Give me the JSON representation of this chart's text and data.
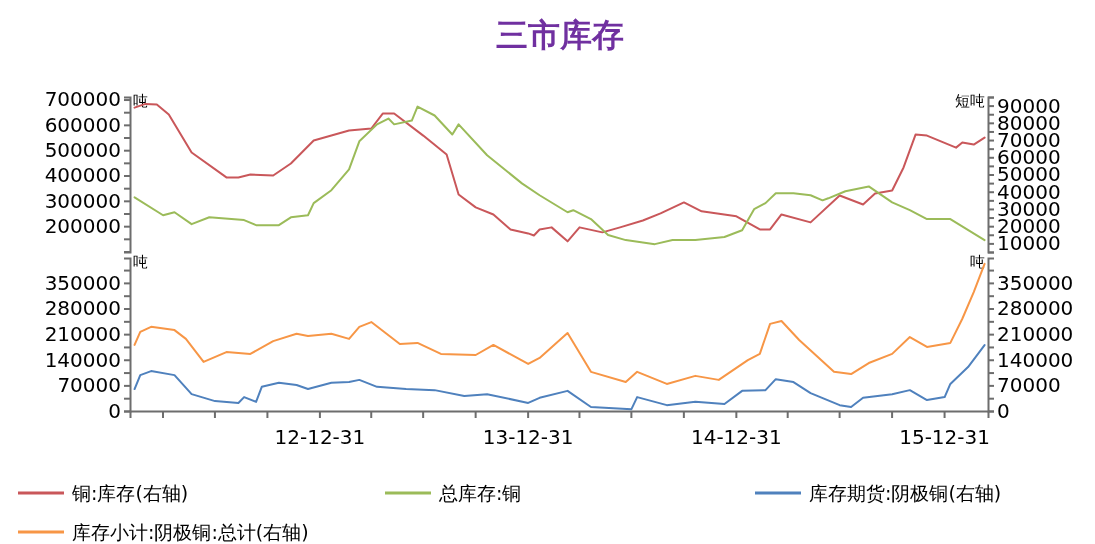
{
  "chart_data": [
    {
      "type": "line",
      "title": "三市库存",
      "ylabel": "吨",
      "y2label": "短吨",
      "legend": "bottom",
      "tick_labels": "y",
      "xlim": [
        "2012-02-03",
        "2016-03-17"
      ],
      "ylim": [
        98000,
        710000
      ],
      "yticks": [
        {
          "value": 100000,
          "label": null
        },
        {
          "value": 150000,
          "label": null
        },
        200000,
        {
          "value": 250000,
          "label": null
        },
        300000,
        {
          "value": 350000,
          "label": null
        },
        400000,
        {
          "value": 450000,
          "label": null
        },
        500000,
        {
          "value": 550000,
          "label": null
        },
        600000,
        {
          "value": 650000,
          "label": null
        },
        700000
      ],
      "y2lim": [
        5000,
        95000
      ],
      "y2ticks": [
        {
          "value": 5000,
          "label": null
        },
        10000,
        {
          "value": 15000,
          "label": null
        },
        20000,
        {
          "value": 25000,
          "label": null
        },
        30000,
        {
          "value": 35000,
          "label": null
        },
        40000,
        {
          "value": 45000,
          "label": null
        },
        50000,
        {
          "value": 55000,
          "label": null
        },
        60000,
        {
          "value": 65000,
          "label": null
        },
        70000,
        {
          "value": 75000,
          "label": null
        },
        80000,
        {
          "value": 85000,
          "label": null
        },
        90000,
        {
          "value": 95000,
          "label": null
        }
      ],
      "series": [
        {
          "name": "铜:库存(右轴)",
          "color": "#c9575a",
          "axis": "y2",
          "x": [
            "2012-02-11",
            "2012-03-01",
            "2012-03-21",
            "2012-04-11",
            "2012-05-21",
            "2012-07-21",
            "2012-08-11",
            "2012-09-01",
            "2012-10-11",
            "2012-11-11",
            "2012-12-21",
            "2013-01-21",
            "2013-02-21",
            "2013-04-01",
            "2013-04-21",
            "2013-05-11",
            "2013-07-01",
            "2013-08-11",
            "2013-09-01",
            "2013-10-01",
            "2013-11-01",
            "2013-12-01",
            "2014-01-01",
            "2014-01-11",
            "2014-01-21",
            "2014-02-11",
            "2014-03-11",
            "2014-04-01",
            "2014-05-11",
            "2014-06-11",
            "2014-07-21",
            "2014-08-21",
            "2014-10-01",
            "2014-11-01",
            "2015-01-01",
            "2015-02-11",
            "2015-03-01",
            "2015-03-21",
            "2015-05-11",
            "2015-07-01",
            "2015-08-11",
            "2015-09-01",
            "2015-10-01",
            "2015-10-21",
            "2015-11-11",
            "2015-12-01",
            "2016-01-21",
            "2016-02-01",
            "2016-02-21",
            "2016-03-11"
          ],
          "values": [
            88800,
            91000,
            90600,
            84800,
            62800,
            48300,
            48300,
            50000,
            49400,
            56400,
            69700,
            72600,
            75500,
            76700,
            85400,
            85400,
            72600,
            61600,
            38400,
            30900,
            26800,
            18100,
            15800,
            14600,
            18100,
            19300,
            11200,
            19300,
            16400,
            19300,
            23300,
            27400,
            33800,
            28600,
            25700,
            18100,
            18100,
            26800,
            22200,
            37800,
            32600,
            39000,
            40700,
            54100,
            73200,
            72600,
            65600,
            68600,
            67400,
            71400
          ]
        },
        {
          "name": "总库存:铜",
          "color": "#9bbb59",
          "x": [
            "2012-02-11",
            "2012-04-01",
            "2012-04-21",
            "2012-05-21",
            "2012-06-21",
            "2012-08-21",
            "2012-09-11",
            "2012-10-21",
            "2012-11-11",
            "2012-12-11",
            "2012-12-21",
            "2013-01-21",
            "2013-02-21",
            "2013-03-11",
            "2013-04-11",
            "2013-05-01",
            "2013-05-11",
            "2013-06-11",
            "2013-06-21",
            "2013-07-21",
            "2013-08-21",
            "2013-09-01",
            "2013-10-21",
            "2013-12-21",
            "2014-01-21",
            "2014-03-11",
            "2014-03-21",
            "2014-04-21",
            "2014-05-21",
            "2014-06-21",
            "2014-08-11",
            "2014-09-11",
            "2014-10-21",
            "2014-12-11",
            "2015-01-11",
            "2015-02-01",
            "2015-02-21",
            "2015-03-11",
            "2015-04-11",
            "2015-05-11",
            "2015-06-01",
            "2015-06-11",
            "2015-07-11",
            "2015-08-21",
            "2015-10-01",
            "2015-11-01",
            "2015-12-01",
            "2016-01-11",
            "2016-03-11"
          ],
          "values": [
            314000,
            243000,
            255000,
            208000,
            235000,
            224000,
            204000,
            204000,
            235000,
            243000,
            291000,
            342000,
            424000,
            535000,
            602000,
            625000,
            602000,
            617000,
            672000,
            637000,
            562000,
            602000,
            480000,
            369000,
            322000,
            255000,
            263000,
            228000,
            165000,
            145000,
            129000,
            145000,
            145000,
            157000,
            184000,
            267000,
            291000,
            330000,
            330000,
            322000,
            302000,
            310000,
            338000,
            357000,
            294000,
            263000,
            228000,
            228000,
            145000
          ]
        }
      ]
    },
    {
      "type": "line",
      "ylabel": "吨",
      "y2label": "吨",
      "legend": "bottom",
      "xlim": [
        "2012-02-03",
        "2016-03-17"
      ],
      "xticks": [
        {
          "value": "2012-03-31",
          "label": null
        },
        {
          "value": "2012-06-30",
          "label": null
        },
        {
          "value": "2012-09-30",
          "label": null
        },
        {
          "value": "2012-12-31",
          "label": "12-12-31"
        },
        {
          "value": "2013-03-31",
          "label": null
        },
        {
          "value": "2013-06-30",
          "label": null
        },
        {
          "value": "2013-09-30",
          "label": null
        },
        {
          "value": "2013-12-31",
          "label": "13-12-31"
        },
        {
          "value": "2014-03-31",
          "label": null
        },
        {
          "value": "2014-06-30",
          "label": null
        },
        {
          "value": "2014-09-30",
          "label": null
        },
        {
          "value": "2014-12-31",
          "label": "14-12-31"
        },
        {
          "value": "2015-03-31",
          "label": null
        },
        {
          "value": "2015-06-30",
          "label": null
        },
        {
          "value": "2015-09-30",
          "label": null
        },
        {
          "value": "2015-12-31",
          "label": "15-12-31"
        }
      ],
      "ylim": [
        0,
        418000
      ],
      "yticks": [
        0,
        {
          "value": 35000,
          "label": null
        },
        70000,
        {
          "value": 105000,
          "label": null
        },
        140000,
        {
          "value": 175000,
          "label": null
        },
        210000,
        {
          "value": 245000,
          "label": null
        },
        280000,
        {
          "value": 315000,
          "label": null
        },
        350000,
        {
          "value": 385000,
          "label": null
        }
      ],
      "y2lim": [
        0,
        418000
      ],
      "y2ticks": [
        0,
        {
          "value": 35000,
          "label": null
        },
        70000,
        {
          "value": 105000,
          "label": null
        },
        140000,
        {
          "value": 175000,
          "label": null
        },
        210000,
        {
          "value": 245000,
          "label": null
        },
        280000,
        {
          "value": 315000,
          "label": null
        },
        350000,
        {
          "value": 385000,
          "label": null
        }
      ],
      "series": [
        {
          "name": "库存期货:阴极铜(右轴)",
          "color": "#4f81bd",
          "axis": "y2",
          "x": [
            "2012-02-11",
            "2012-02-21",
            "2012-03-11",
            "2012-04-21",
            "2012-05-21",
            "2012-07-01",
            "2012-08-11",
            "2012-08-21",
            "2012-09-11",
            "2012-09-21",
            "2012-10-21",
            "2012-11-21",
            "2012-12-11",
            "2013-01-21",
            "2013-02-21",
            "2013-03-11",
            "2013-04-11",
            "2013-06-01",
            "2013-07-21",
            "2013-09-11",
            "2013-10-21",
            "2014-01-01",
            "2014-01-21",
            "2014-03-11",
            "2014-04-21",
            "2014-07-01",
            "2014-07-11",
            "2014-09-01",
            "2014-10-21",
            "2014-12-11",
            "2015-01-11",
            "2015-02-21",
            "2015-03-11",
            "2015-04-11",
            "2015-05-11",
            "2015-07-01",
            "2015-07-21",
            "2015-08-11",
            "2015-10-01",
            "2015-11-01",
            "2015-12-01",
            "2016-01-01",
            "2016-01-11",
            "2016-02-11",
            "2016-03-11"
          ],
          "values": [
            60000,
            98000,
            109000,
            98000,
            46000,
            27000,
            22000,
            38000,
            25000,
            66000,
            77000,
            71000,
            60000,
            77000,
            79000,
            85000,
            66000,
            60000,
            57000,
            41000,
            46000,
            22000,
            36000,
            55000,
            11000,
            5000,
            38000,
            16000,
            25000,
            19000,
            55000,
            57000,
            87000,
            79000,
            49000,
            16000,
            11000,
            36000,
            46000,
            57000,
            30000,
            38000,
            74000,
            120000,
            180000
          ]
        },
        {
          "name": "库存小计:阴极铜:总计(右轴)",
          "color": "#f79646",
          "axis": "y2",
          "x": [
            "2012-02-11",
            "2012-02-21",
            "2012-03-11",
            "2012-04-21",
            "2012-05-11",
            "2012-06-11",
            "2012-07-21",
            "2012-09-01",
            "2012-10-11",
            "2012-11-21",
            "2012-12-11",
            "2013-01-21",
            "2013-02-21",
            "2013-03-11",
            "2013-04-01",
            "2013-05-21",
            "2013-06-21",
            "2013-08-01",
            "2013-10-01",
            "2013-11-01",
            "2014-01-01",
            "2014-01-21",
            "2014-03-11",
            "2014-04-21",
            "2014-06-21",
            "2014-07-11",
            "2014-09-01",
            "2014-10-21",
            "2014-12-01",
            "2015-01-21",
            "2015-02-11",
            "2015-03-01",
            "2015-03-21",
            "2015-04-21",
            "2015-06-21",
            "2015-07-21",
            "2015-08-21",
            "2015-10-01",
            "2015-11-01",
            "2015-12-01",
            "2016-01-11",
            "2016-02-01",
            "2016-02-21",
            "2016-03-11"
          ],
          "values": [
            180500,
            216000,
            230000,
            221000,
            197000,
            134000,
            161000,
            156000,
            191000,
            211000,
            205000,
            211000,
            197000,
            230000,
            243000,
            183000,
            186000,
            156000,
            153000,
            180500,
            128500,
            145000,
            213000,
            107000,
            79000,
            107000,
            74000,
            96000,
            85000,
            139000,
            156000,
            238000,
            246000,
            194000,
            107000,
            101000,
            131000,
            156000,
            202000,
            175000,
            186000,
            252000,
            325000,
            402000
          ]
        }
      ]
    }
  ]
}
